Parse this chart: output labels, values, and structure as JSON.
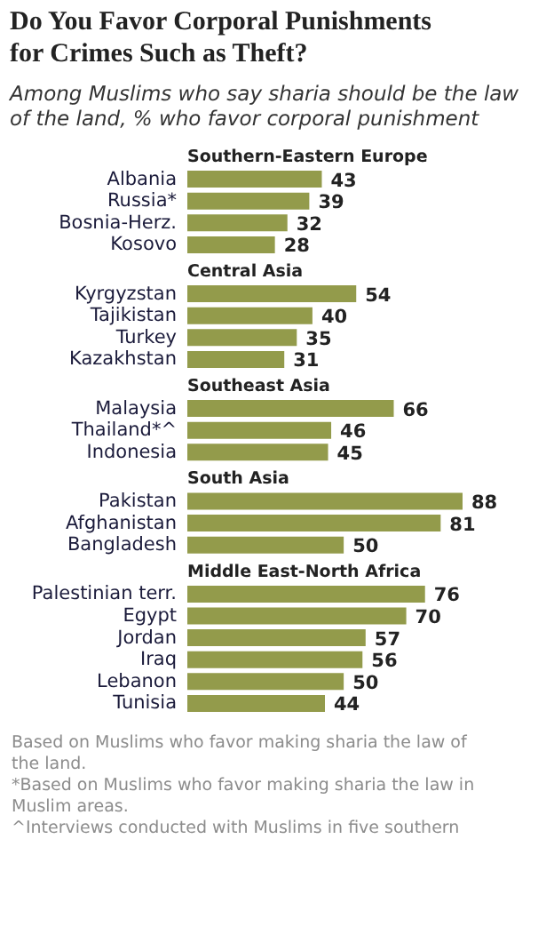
{
  "chart_data": {
    "type": "bar",
    "orientation": "horizontal",
    "title": "Do You Favor Corporal Punishments for Crimes Such as Theft?",
    "subtitle": "Among Muslims who say sharia should be the law of the land, % who favor corporal punishment",
    "categories": [
      "Southern-Eastern Europe",
      "Albania",
      "Russia*",
      "Bosnia-Herz.",
      "Kosovo",
      "Central Asia",
      "Kyrgyzstan",
      "Tajikistan",
      "Turkey",
      "Kazakhstan",
      "Southeast Asia",
      "Malaysia",
      "Thailand*^",
      "Indonesia",
      "South Asia",
      "Pakistan",
      "Afghanistan",
      "Bangladesh",
      "Middle East-North Africa",
      "Palestinian terr.",
      "Egypt",
      "Jordan",
      "Iraq",
      "Lebanon",
      "Tunisia"
    ],
    "values": [
      null,
      43,
      39,
      32,
      28,
      null,
      54,
      40,
      35,
      31,
      null,
      66,
      46,
      45,
      null,
      88,
      81,
      50,
      null,
      76,
      70,
      57,
      56,
      50,
      44
    ],
    "color": "#939b4b",
    "data_labels": true,
    "annotations": [
      "Based on Muslims who favor making sharia the law of the land.",
      "*Based on Muslims who favor making sharia the law in Muslim areas.",
      "^Interviews conducted with Muslims in five southern"
    ]
  }
}
